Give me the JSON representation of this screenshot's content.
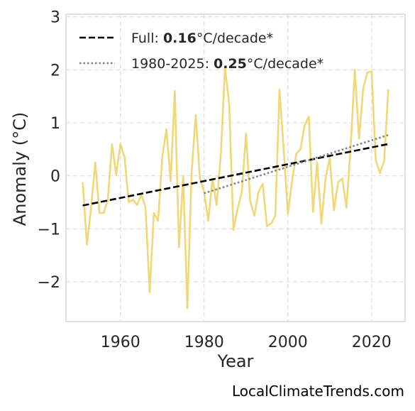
{
  "chart_data": {
    "type": "line",
    "xlabel": "Year",
    "ylabel": "Anomaly (°C)",
    "xlim": [
      1947,
      2028
    ],
    "ylim": [
      -2.75,
      3.05
    ],
    "x_ticks": [
      1960,
      1980,
      2000,
      2020
    ],
    "y_ticks": [
      -2,
      -1,
      0,
      1,
      2,
      3
    ],
    "y_tick_labels": [
      "−2",
      "−1",
      "0",
      "1",
      "2",
      "3"
    ],
    "grid": true,
    "legend_position": "top-left",
    "series": [
      {
        "kind": "data",
        "color": "#f0d878",
        "x": [
          1951,
          1952,
          1953,
          1954,
          1955,
          1956,
          1957,
          1958,
          1959,
          1960,
          1961,
          1962,
          1963,
          1964,
          1965,
          1966,
          1967,
          1968,
          1969,
          1970,
          1971,
          1972,
          1973,
          1974,
          1975,
          1976,
          1977,
          1978,
          1979,
          1980,
          1981,
          1982,
          1983,
          1984,
          1985,
          1986,
          1987,
          1988,
          1989,
          1990,
          1991,
          1992,
          1993,
          1994,
          1995,
          1996,
          1997,
          1998,
          1999,
          2000,
          2001,
          2002,
          2003,
          2004,
          2005,
          2006,
          2007,
          2008,
          2009,
          2010,
          2011,
          2012,
          2013,
          2014,
          2015,
          2016,
          2017,
          2018,
          2019,
          2020,
          2021,
          2022,
          2023,
          2024
        ],
        "y": [
          -0.12,
          -1.3,
          -0.6,
          0.25,
          -0.7,
          -0.7,
          -0.45,
          0.6,
          0.02,
          0.6,
          0.35,
          -0.5,
          -0.45,
          -0.55,
          -0.35,
          -0.6,
          -2.2,
          -0.7,
          -0.85,
          0.35,
          0.88,
          -0.1,
          1.6,
          -1.35,
          0.0,
          -2.5,
          0.05,
          1.15,
          -0.05,
          -0.3,
          -0.85,
          -0.05,
          -0.55,
          0.4,
          2.05,
          1.35,
          -1.02,
          -0.62,
          -0.3,
          0.8,
          -0.48,
          -0.75,
          -0.3,
          -0.15,
          -0.95,
          -0.9,
          -0.75,
          1.63,
          0.5,
          -0.72,
          -0.1,
          0.42,
          0.5,
          0.95,
          1.12,
          -0.68,
          0.25,
          -0.9,
          -0.05,
          0.35,
          -0.65,
          -0.12,
          -0.05,
          -0.6,
          0.55,
          2.0,
          0.7,
          1.65,
          1.95,
          1.97,
          0.3,
          0.05,
          0.28,
          1.63
        ]
      },
      {
        "kind": "trend",
        "name": "Full",
        "rate": "0.16",
        "unit": "°C/decade*",
        "color": "#000000",
        "style": "dashed",
        "x": [
          1951,
          2024
        ],
        "y": [
          -0.56,
          0.6
        ]
      },
      {
        "kind": "trend",
        "name": "1980-2025",
        "rate": "0.25",
        "unit": "°C/decade*",
        "color": "#808080",
        "style": "dotted",
        "x": [
          1980,
          2024
        ],
        "y": [
          -0.33,
          0.77
        ]
      }
    ],
    "legend": {
      "entries": [
        {
          "prefix": "Full: ",
          "bold": "0.16",
          "suffix": "°C/decade*"
        },
        {
          "prefix": "1980-2025: ",
          "bold": "0.25",
          "suffix": "°C/decade*"
        }
      ]
    }
  },
  "watermark": "LocalClimateTrends.com"
}
